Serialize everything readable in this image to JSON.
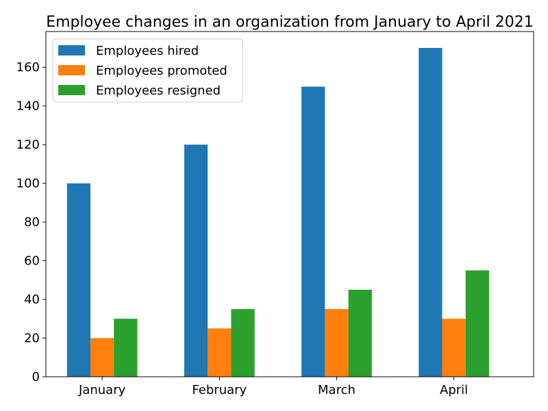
{
  "chart_data": {
    "type": "bar",
    "title": "Employee changes in an organization from January to April 2021",
    "xlabel": "",
    "ylabel": "",
    "categories": [
      "January",
      "February",
      "March",
      "April"
    ],
    "series": [
      {
        "name": "Employees hired",
        "values": [
          100,
          120,
          150,
          170
        ],
        "color": "#1f77b4"
      },
      {
        "name": "Employees promoted",
        "values": [
          20,
          25,
          35,
          30
        ],
        "color": "#ff7f0e"
      },
      {
        "name": "Employees resigned",
        "values": [
          30,
          35,
          45,
          55
        ],
        "color": "#2ca02c"
      }
    ],
    "ylim": [
      0,
      178.5
    ],
    "yticks": [
      "0",
      "20",
      "40",
      "60",
      "80",
      "100",
      "120",
      "140",
      "160"
    ],
    "grid": false,
    "legend_position": "upper-left"
  }
}
